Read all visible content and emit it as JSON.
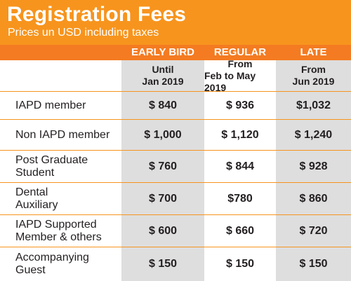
{
  "header": {
    "title": "Registration Fees",
    "subtitle": "Prices un USD including taxes"
  },
  "columns": [
    {
      "name": "EARLY BIRD",
      "period_line1": "Until",
      "period_line2": "Jan 2019"
    },
    {
      "name": "REGULAR",
      "period_line1": "From",
      "period_line2": "Feb to May 2019"
    },
    {
      "name": "LATE",
      "period_line1": "From",
      "period_line2": "Jun 2019"
    }
  ],
  "rows": [
    {
      "label_line1": "IAPD member",
      "label_line2": "",
      "values": [
        "$ 840",
        "$ 936",
        "$1,032"
      ]
    },
    {
      "label_line1": "Non IAPD member",
      "label_line2": "",
      "values": [
        "$ 1,000",
        "$ 1,120",
        "$ 1,240"
      ]
    },
    {
      "label_line1": "Post Graduate",
      "label_line2": "Student",
      "values": [
        "$ 760",
        "$ 844",
        "$ 928"
      ]
    },
    {
      "label_line1": "Dental",
      "label_line2": "Auxiliary",
      "values": [
        "$ 700",
        "$780",
        "$ 860"
      ]
    },
    {
      "label_line1": "IAPD Supported",
      "label_line2": "Member & others",
      "values": [
        "$ 600",
        "$ 660",
        "$ 720"
      ]
    },
    {
      "label_line1": "Accompanying",
      "label_line2": "Guest",
      "values": [
        "$ 150",
        "$ 150",
        "$ 150"
      ]
    }
  ]
}
